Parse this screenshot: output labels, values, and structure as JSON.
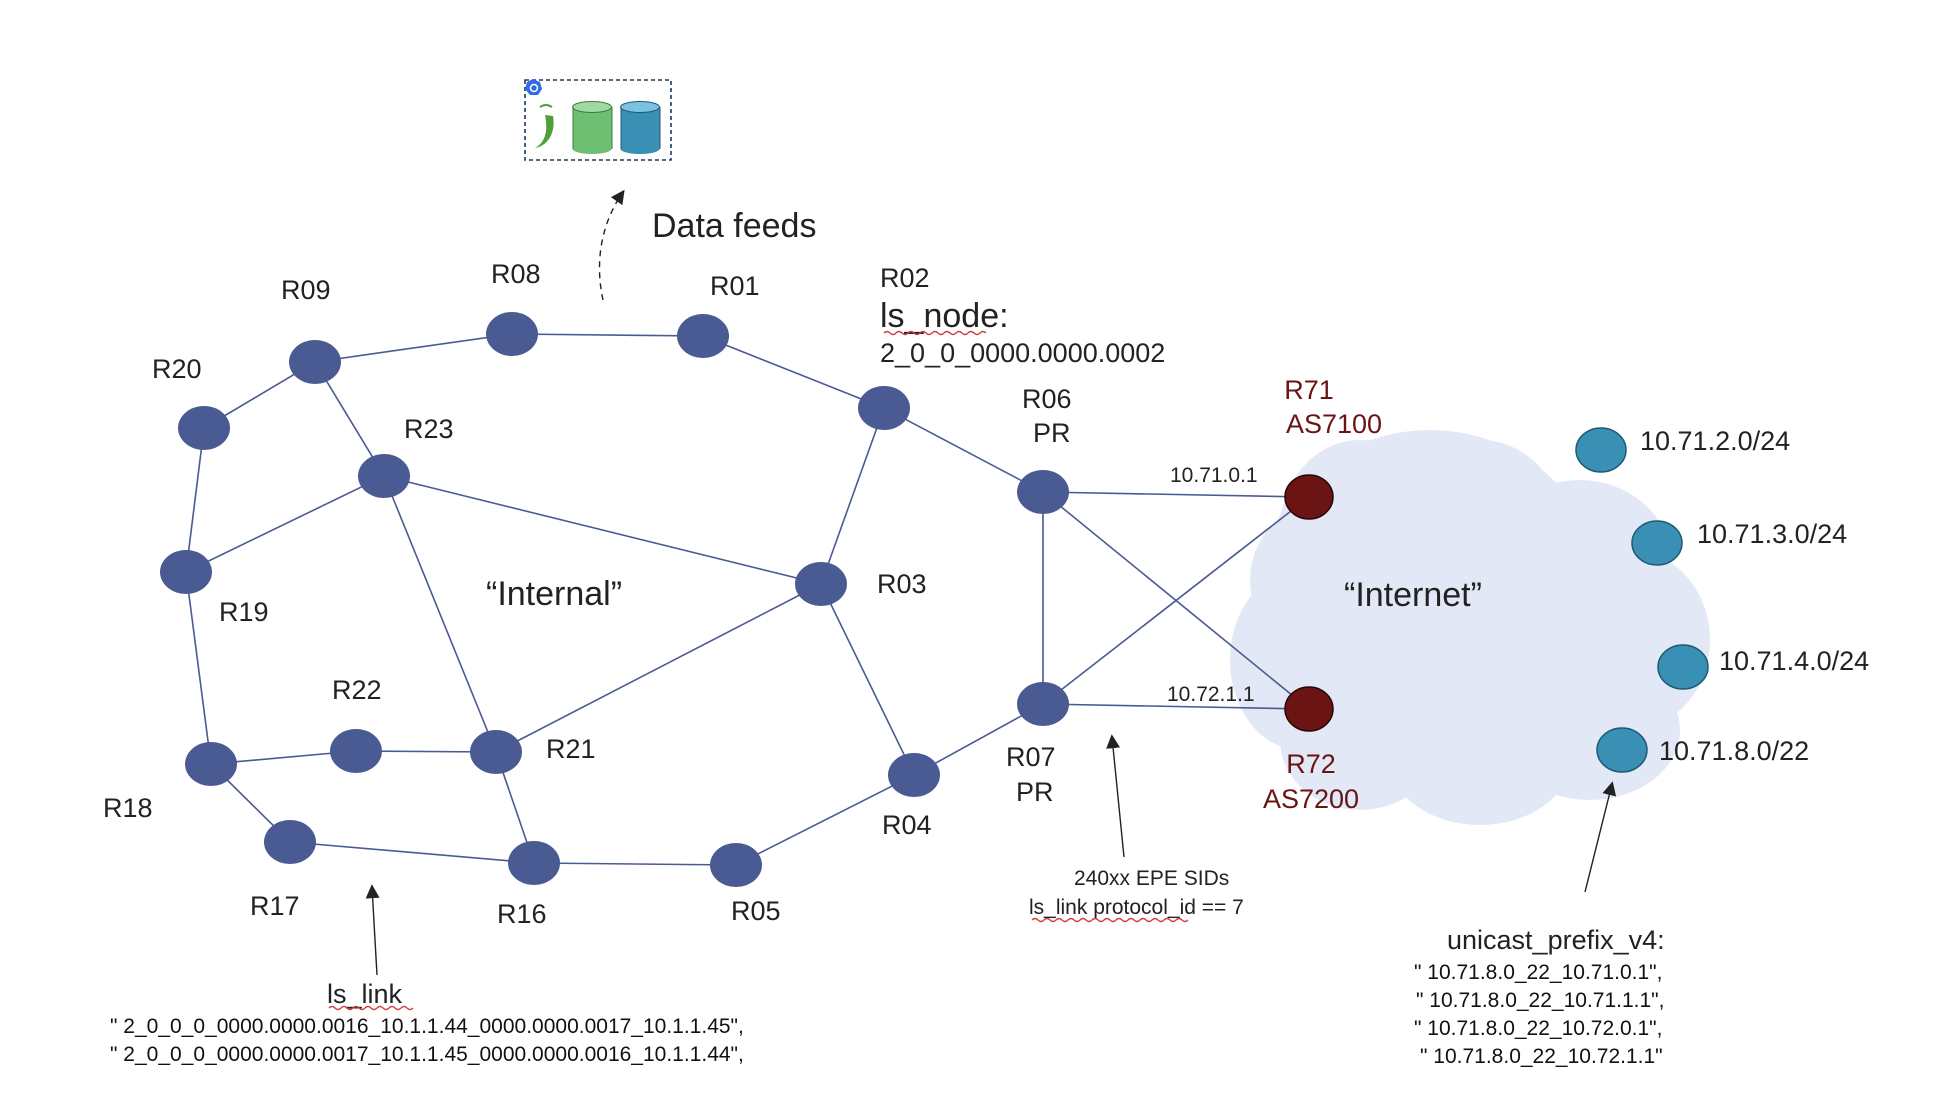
{
  "routers": {
    "r01": "R01",
    "r02": "R02",
    "r03": "R03",
    "r04": "R04",
    "r05": "R05",
    "r06": "R06",
    "r06_role": "PR",
    "r07": "R07",
    "r07_role": "PR",
    "r08": "R08",
    "r09": "R09",
    "r16": "R16",
    "r17": "R17",
    "r18": "R18",
    "r19": "R19",
    "r20": "R20",
    "r21": "R21",
    "r22": "R22",
    "r23": "R23"
  },
  "external": {
    "r71": "R71",
    "r71_as": "AS7100",
    "r72": "R72",
    "r72_as": "AS7200",
    "r71_ip": "10.71.0.1",
    "r72_ip": "10.72.1.1"
  },
  "regions": {
    "internal": "“Internal”",
    "internet": "“Internet”"
  },
  "prefixes": [
    "10.71.2.0/24",
    "10.71.3.0/24",
    "10.71.4.0/24",
    "10.71.8.0/22"
  ],
  "annotations": {
    "data_feeds": "Data feeds",
    "ls_node_title": "ls_node:",
    "ls_node_value": "2_0_0_0000.0000.0002",
    "epe_line1": "240xx EPE SIDs",
    "epe_line2": "ls_link protocol_id == 7",
    "ls_link_title": "ls_link",
    "ls_link_line1": "\" 2_0_0_0_0000.0000.0016_10.1.1.44_0000.0000.0017_10.1.1.45\",",
    "ls_link_line2": "\" 2_0_0_0_0000.0000.0017_10.1.1.45_0000.0000.0016_10.1.1.44\",",
    "unicast_title": "unicast_prefix_v4:",
    "unicast_1": "\" 10.71.8.0_22_10.71.0.1\",",
    "unicast_2": "\" 10.71.8.0_22_10.71.1.1\",",
    "unicast_3": "\" 10.71.8.0_22_10.72.0.1\",",
    "unicast_4": "\" 10.71.8.0_22_10.72.1.1\""
  },
  "icons": [
    "kubernetes-icon",
    "chili-pepper-icon",
    "green-database-icon",
    "blue-database-icon"
  ],
  "colors": {
    "router": "#4a5a93",
    "external_router": "#6b1414",
    "prefix_node": "#3a8fb5",
    "cloud": "#e3e8f6"
  }
}
